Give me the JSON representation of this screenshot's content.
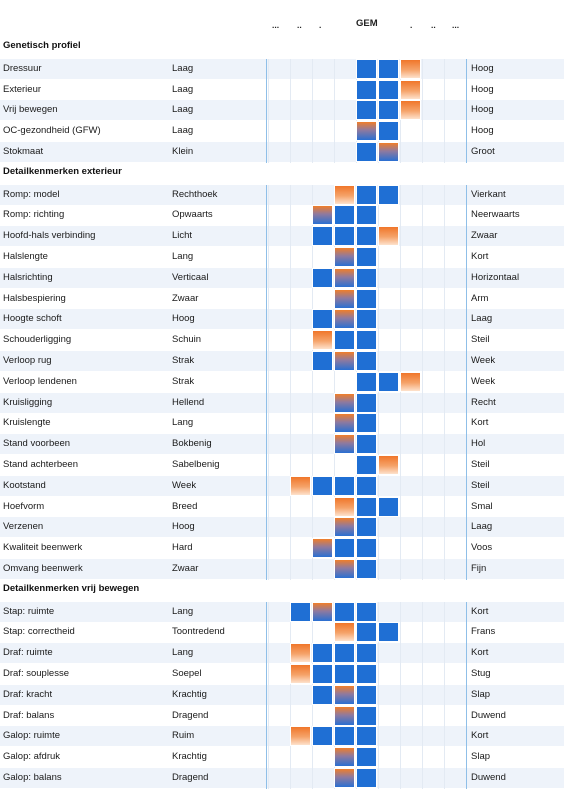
{
  "header": {
    "gem_label": "GEM",
    "dots_left": [
      "...",
      "..",
      "."
    ],
    "dots_right": [
      ".",
      "..",
      "..."
    ]
  },
  "colors": {
    "blue": "#1f6fd4",
    "orange": "#f07e2a",
    "row_shade": "#eef3fa",
    "divider": "#8fbfe8"
  },
  "scale_note": "Bars span a 9-step scale from -4 to +4 around GEM (0)",
  "sections": [
    {
      "title": "Genetisch profiel",
      "rows": [
        {
          "label": "Dressuur",
          "low": "Laag",
          "high": "Hoog",
          "from": 0,
          "to": 3,
          "tip": "orange-right"
        },
        {
          "label": "Exterieur",
          "low": "Laag",
          "high": "Hoog",
          "from": 0,
          "to": 3,
          "tip": "orange-right"
        },
        {
          "label": "Vrij bewegen",
          "low": "Laag",
          "high": "Hoog",
          "from": 0,
          "to": 3,
          "tip": "orange-right"
        },
        {
          "label": "OC-gezondheid (GFW)",
          "low": "Laag",
          "high": "Hoog",
          "from": 0,
          "to": 2,
          "tip": "mix-left"
        },
        {
          "label": "Stokmaat",
          "low": "Klein",
          "high": "Groot",
          "from": 0,
          "to": 2,
          "tip": "mix-right"
        }
      ]
    },
    {
      "title": "Detailkenmerken exterieur",
      "rows": [
        {
          "label": "Romp: model",
          "low": "Rechthoek",
          "high": "Vierkant",
          "from": -1,
          "to": 2,
          "tip": "orange-left"
        },
        {
          "label": "Romp: richting",
          "low": "Opwaarts",
          "high": "Neerwaarts",
          "from": -2,
          "to": 1,
          "tip": "mix-left"
        },
        {
          "label": "Hoofd-hals verbinding",
          "low": "Licht",
          "high": "Zwaar",
          "from": -2,
          "to": 2,
          "tip": "orange-right"
        },
        {
          "label": "Halslengte",
          "low": "Lang",
          "high": "Kort",
          "from": -1,
          "to": 1,
          "tip": "mix-left"
        },
        {
          "label": "Halsrichting",
          "low": "Verticaal",
          "high": "Horizontaal",
          "from": -2,
          "to": 1,
          "tip": "mix-mid"
        },
        {
          "label": "Halsbespiering",
          "low": "Zwaar",
          "high": "Arm",
          "from": -1,
          "to": 1,
          "tip": "mix-left"
        },
        {
          "label": "Hoogte schoft",
          "low": "Hoog",
          "high": "Laag",
          "from": -2,
          "to": 1,
          "tip": "mix-mid"
        },
        {
          "label": "Schouderligging",
          "low": "Schuin",
          "high": "Steil",
          "from": -2,
          "to": 1,
          "tip": "orange-left"
        },
        {
          "label": "Verloop rug",
          "low": "Strak",
          "high": "Week",
          "from": -2,
          "to": 1,
          "tip": "mix-mid"
        },
        {
          "label": "Verloop lendenen",
          "low": "Strak",
          "high": "Week",
          "from": 0,
          "to": 3,
          "tip": "orange-right"
        },
        {
          "label": "Kruisligging",
          "low": "Hellend",
          "high": "Recht",
          "from": -1,
          "to": 1,
          "tip": "mix-left"
        },
        {
          "label": "Kruislengte",
          "low": "Lang",
          "high": "Kort",
          "from": -1,
          "to": 1,
          "tip": "mix-left"
        },
        {
          "label": "Stand voorbeen",
          "low": "Bokbenig",
          "high": "Hol",
          "from": -1,
          "to": 1,
          "tip": "mix-left"
        },
        {
          "label": "Stand achterbeen",
          "low": "Sabelbenig",
          "high": "Steil",
          "from": 0,
          "to": 2,
          "tip": "orange-right"
        },
        {
          "label": "Kootstand",
          "low": "Week",
          "high": "Steil",
          "from": -3,
          "to": 1,
          "tip": "orange-left"
        },
        {
          "label": "Hoefvorm",
          "low": "Breed",
          "high": "Smal",
          "from": -1,
          "to": 2,
          "tip": "orange-left"
        },
        {
          "label": "Verzenen",
          "low": "Hoog",
          "high": "Laag",
          "from": -1,
          "to": 1,
          "tip": "mix-left"
        },
        {
          "label": "Kwaliteit beenwerk",
          "low": "Hard",
          "high": "Voos",
          "from": -2,
          "to": 1,
          "tip": "mix-left"
        },
        {
          "label": "Omvang beenwerk",
          "low": "Zwaar",
          "high": "Fijn",
          "from": -1,
          "to": 1,
          "tip": "mix-left"
        }
      ]
    },
    {
      "title": "Detailkenmerken vrij bewegen",
      "rows": [
        {
          "label": "Stap: ruimte",
          "low": "Lang",
          "high": "Kort",
          "from": -3,
          "to": 1,
          "tip": "mix-second"
        },
        {
          "label": "Stap: correctheid",
          "low": "Toontredend",
          "high": "Frans",
          "from": -1,
          "to": 2,
          "tip": "orange-left"
        },
        {
          "label": "Draf: ruimte",
          "low": "Lang",
          "high": "Kort",
          "from": -3,
          "to": 1,
          "tip": "orange-left"
        },
        {
          "label": "Draf: souplesse",
          "low": "Soepel",
          "high": "Stug",
          "from": -3,
          "to": 1,
          "tip": "orange-left"
        },
        {
          "label": "Draf: kracht",
          "low": "Krachtig",
          "high": "Slap",
          "from": -2,
          "to": 1,
          "tip": "mix-mid"
        },
        {
          "label": "Draf: balans",
          "low": "Dragend",
          "high": "Duwend",
          "from": -1,
          "to": 1,
          "tip": "mix-left"
        },
        {
          "label": "Galop: ruimte",
          "low": "Ruim",
          "high": "Kort",
          "from": -3,
          "to": 1,
          "tip": "orange-left"
        },
        {
          "label": "Galop: afdruk",
          "low": "Krachtig",
          "high": "Slap",
          "from": -1,
          "to": 1,
          "tip": "mix-left"
        },
        {
          "label": "Galop: balans",
          "low": "Dragend",
          "high": "Duwend",
          "from": -1,
          "to": 1,
          "tip": "mix-left"
        }
      ]
    }
  ]
}
